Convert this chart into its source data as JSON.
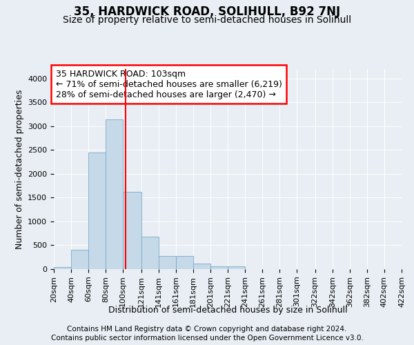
{
  "title": "35, HARDWICK ROAD, SOLIHULL, B92 7NJ",
  "subtitle": "Size of property relative to semi-detached houses in Solihull",
  "xlabel": "Distribution of semi-detached houses by size in Solihull",
  "ylabel": "Number of semi-detached properties",
  "footer_line1": "Contains HM Land Registry data © Crown copyright and database right 2024.",
  "footer_line2": "Contains public sector information licensed under the Open Government Licence v3.0.",
  "bins": [
    "20sqm",
    "40sqm",
    "60sqm",
    "80sqm",
    "100sqm",
    "121sqm",
    "141sqm",
    "161sqm",
    "181sqm",
    "201sqm",
    "221sqm",
    "241sqm",
    "261sqm",
    "281sqm",
    "301sqm",
    "322sqm",
    "342sqm",
    "362sqm",
    "382sqm",
    "402sqm",
    "422sqm"
  ],
  "bin_edges": [
    20,
    40,
    60,
    80,
    100,
    121,
    141,
    161,
    181,
    201,
    221,
    241,
    261,
    281,
    301,
    322,
    342,
    362,
    382,
    402,
    422
  ],
  "values": [
    50,
    400,
    2450,
    3150,
    1620,
    680,
    270,
    270,
    115,
    65,
    55,
    0,
    0,
    0,
    0,
    0,
    0,
    0,
    0,
    0
  ],
  "bar_color": "#c5d9e8",
  "bar_edge_color": "#7aaac8",
  "highlight_value": 103,
  "highlight_line_color": "red",
  "annotation_text": "35 HARDWICK ROAD: 103sqm\n← 71% of semi-detached houses are smaller (6,219)\n28% of semi-detached houses are larger (2,470) →",
  "annotation_box_color": "white",
  "annotation_box_edge_color": "red",
  "ylim": [
    0,
    4200
  ],
  "yticks": [
    0,
    500,
    1000,
    1500,
    2000,
    2500,
    3000,
    3500,
    4000
  ],
  "background_color": "#e8eef4",
  "plot_bg_color": "#e8eef4",
  "title_fontsize": 12,
  "subtitle_fontsize": 10,
  "axis_label_fontsize": 9,
  "tick_fontsize": 8,
  "footer_fontsize": 7.5,
  "annotation_fontsize": 9
}
